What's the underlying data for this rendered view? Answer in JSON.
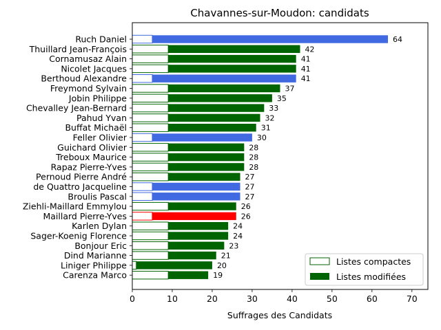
{
  "chart_data": {
    "type": "bar",
    "orientation": "horizontal",
    "title": "Chavannes-sur-Moudon: candidats",
    "xlabel": "Suffrages des Candidats",
    "ylabel": "",
    "xlim": [
      0,
      74
    ],
    "xticks": [
      0,
      10,
      20,
      30,
      40,
      50,
      60,
      70
    ],
    "grid": false,
    "legend_position": "bottom-right",
    "legend": [
      {
        "label": "Listes compactes",
        "style": "outline",
        "color": "#006400"
      },
      {
        "label": "Listes modifiées",
        "style": "filled",
        "color": "#006400"
      }
    ],
    "series": [
      {
        "name": "Listes compactes",
        "values": [
          5,
          9,
          9,
          9,
          5,
          9,
          9,
          9,
          9,
          9,
          5,
          9,
          9,
          9,
          9,
          5,
          5,
          9,
          5,
          9,
          9,
          9,
          9,
          1,
          9
        ]
      },
      {
        "name": "Listes modifiées",
        "values": [
          64,
          42,
          41,
          41,
          41,
          37,
          35,
          33,
          32,
          31,
          30,
          28,
          28,
          28,
          27,
          27,
          27,
          26,
          26,
          24,
          24,
          23,
          21,
          20,
          19
        ]
      }
    ],
    "candidates": [
      {
        "name": "Ruch Daniel",
        "total": 64,
        "compact": 5,
        "color": "#4169e1"
      },
      {
        "name": "Thuillard Jean-François",
        "total": 42,
        "compact": 9,
        "color": "#006400"
      },
      {
        "name": "Cornamusaz Alain",
        "total": 41,
        "compact": 9,
        "color": "#006400"
      },
      {
        "name": "Nicolet Jacques",
        "total": 41,
        "compact": 9,
        "color": "#006400"
      },
      {
        "name": "Berthoud Alexandre",
        "total": 41,
        "compact": 5,
        "color": "#4169e1"
      },
      {
        "name": "Freymond Sylvain",
        "total": 37,
        "compact": 9,
        "color": "#006400"
      },
      {
        "name": "Jobin Philippe",
        "total": 35,
        "compact": 9,
        "color": "#006400"
      },
      {
        "name": "Chevalley Jean-Bernard",
        "total": 33,
        "compact": 9,
        "color": "#006400"
      },
      {
        "name": "Pahud Yvan",
        "total": 32,
        "compact": 9,
        "color": "#006400"
      },
      {
        "name": "Buffat Michaël",
        "total": 31,
        "compact": 9,
        "color": "#006400"
      },
      {
        "name": "Feller Olivier",
        "total": 30,
        "compact": 5,
        "color": "#4169e1"
      },
      {
        "name": "Guichard Olivier",
        "total": 28,
        "compact": 9,
        "color": "#006400"
      },
      {
        "name": "Treboux Maurice",
        "total": 28,
        "compact": 9,
        "color": "#006400"
      },
      {
        "name": "Rapaz Pierre-Yves",
        "total": 28,
        "compact": 9,
        "color": "#006400"
      },
      {
        "name": "Pernoud Pierre André",
        "total": 27,
        "compact": 9,
        "color": "#006400"
      },
      {
        "name": "de Quattro Jacqueline",
        "total": 27,
        "compact": 5,
        "color": "#4169e1"
      },
      {
        "name": "Broulis Pascal",
        "total": 27,
        "compact": 5,
        "color": "#4169e1"
      },
      {
        "name": "Ziehli-Maillard Emmylou",
        "total": 26,
        "compact": 9,
        "color": "#006400"
      },
      {
        "name": "Maillard Pierre-Yves",
        "total": 26,
        "compact": 5,
        "color": "#ff0000"
      },
      {
        "name": "Karlen Dylan",
        "total": 24,
        "compact": 9,
        "color": "#006400"
      },
      {
        "name": "Sager-Koenig Florence",
        "total": 24,
        "compact": 9,
        "color": "#006400"
      },
      {
        "name": "Bonjour Eric",
        "total": 23,
        "compact": 9,
        "color": "#006400"
      },
      {
        "name": "Dind Marianne",
        "total": 21,
        "compact": 9,
        "color": "#006400"
      },
      {
        "name": "Liniger Philippe",
        "total": 20,
        "compact": 1,
        "color": "#006400"
      },
      {
        "name": "Carenza Marco",
        "total": 19,
        "compact": 9,
        "color": "#006400"
      }
    ]
  }
}
